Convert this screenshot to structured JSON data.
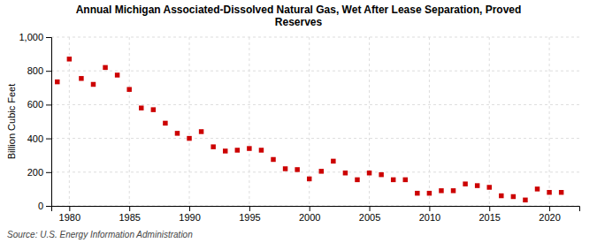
{
  "chart_data": {
    "type": "scatter",
    "title": "Annual Michigan Associated-Dissolved Natural Gas, Wet After Lease Separation, Proved\nReserves",
    "ylabel": "Billion Cubic Feet",
    "source": "Source: U.S. Energy Information Administration",
    "color": "#cc0000",
    "marker": "square",
    "grid": true,
    "xlim": [
      1978.5,
      2022.5
    ],
    "xticks": [
      1980,
      1985,
      1990,
      1995,
      2000,
      2005,
      2010,
      2015,
      2020
    ],
    "ylim": [
      0,
      1000
    ],
    "yticks": [
      0,
      200,
      400,
      600,
      800,
      {
        "value": 1000,
        "label": "1,000"
      }
    ],
    "x": [
      1979,
      1980,
      1981,
      1982,
      1983,
      1984,
      1985,
      1986,
      1987,
      1988,
      1989,
      1990,
      1991,
      1992,
      1993,
      1994,
      1995,
      1996,
      1997,
      1998,
      1999,
      2000,
      2001,
      2002,
      2003,
      2004,
      2005,
      2006,
      2007,
      2008,
      2009,
      2010,
      2011,
      2012,
      2013,
      2014,
      2015,
      2016,
      2017,
      2018,
      2019,
      2020,
      2021
    ],
    "values": [
      735,
      870,
      755,
      720,
      820,
      775,
      690,
      580,
      570,
      490,
      430,
      400,
      440,
      350,
      325,
      330,
      340,
      330,
      275,
      220,
      215,
      160,
      205,
      265,
      195,
      155,
      195,
      185,
      155,
      155,
      75,
      75,
      90,
      90,
      130,
      120,
      110,
      60,
      55,
      35,
      100,
      80,
      80
    ]
  }
}
